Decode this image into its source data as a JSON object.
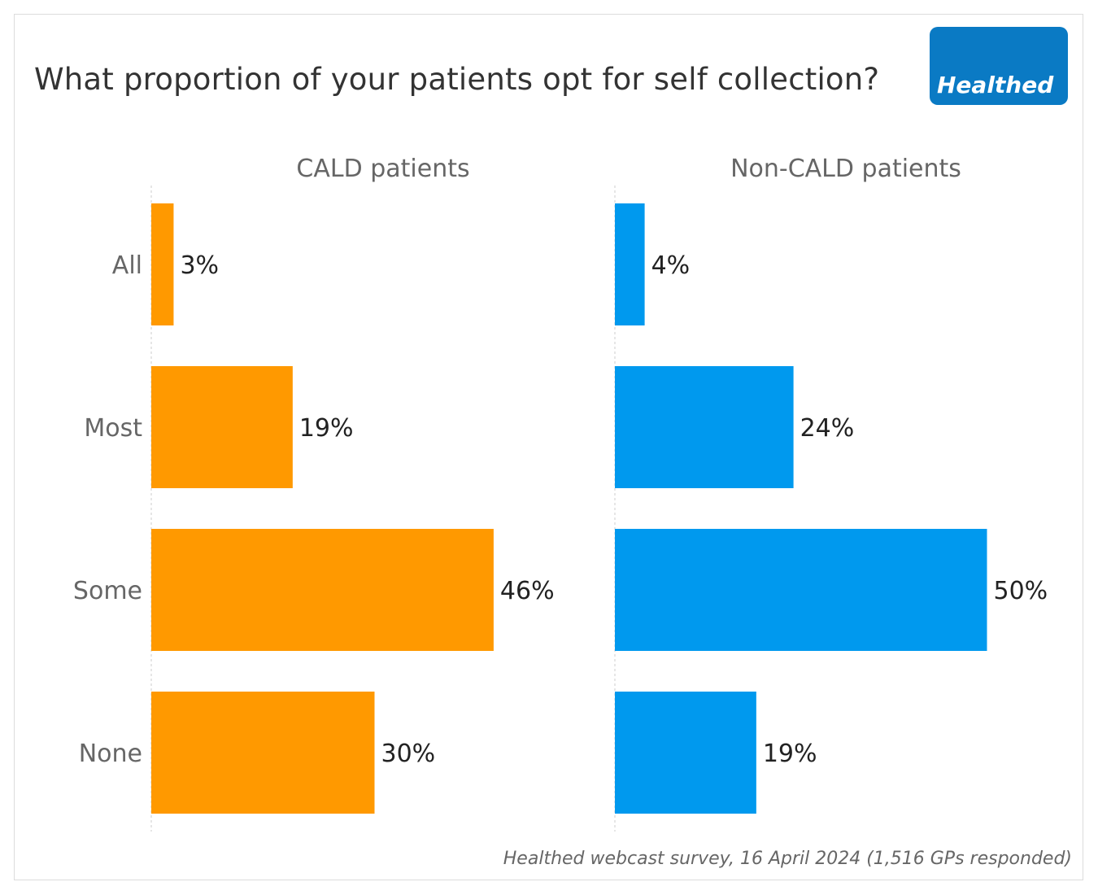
{
  "title": "What proportion of your patients opt for self collection?",
  "logo_text": "Healthed",
  "footer": "Healthed webcast survey, 16 April 2024 (1,516 GPs responded)",
  "chart_data": {
    "type": "bar",
    "orientation": "horizontal",
    "title": "What proportion of your patients opt for self collection?",
    "categories": [
      "All",
      "Most",
      "Some",
      "None"
    ],
    "series": [
      {
        "name": "CALD patients",
        "color": "#ff9900",
        "values": [
          3,
          19,
          46,
          30
        ],
        "labels": [
          "3%",
          "19%",
          "46%",
          "30%"
        ]
      },
      {
        "name": "Non-CALD patients",
        "color": "#0099ee",
        "values": [
          4,
          24,
          50,
          19
        ],
        "labels": [
          "4%",
          "24%",
          "50%",
          "19%"
        ]
      }
    ],
    "unit": "%",
    "xlim": [
      0,
      55
    ]
  }
}
